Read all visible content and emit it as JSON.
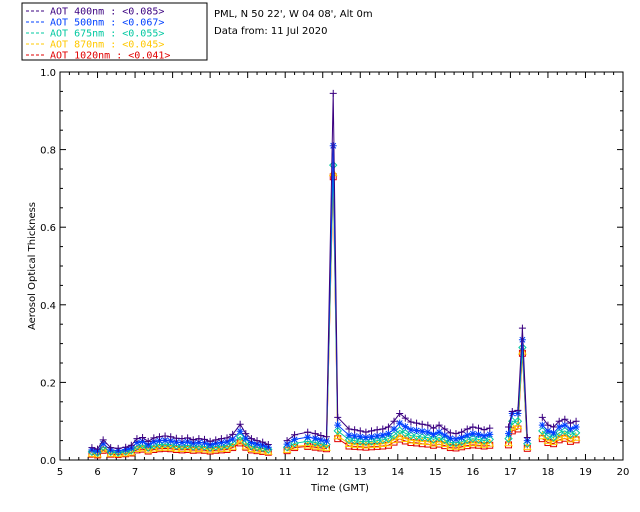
{
  "info": {
    "location": "PML, N 50 22', W 04 08', Alt 0m",
    "date": "Data from: 11 Jul 2020"
  },
  "chart_data": {
    "type": "line",
    "xlabel": "Time (GMT)",
    "ylabel": "Aerosol Optical Thickness",
    "xlim": [
      5,
      20
    ],
    "ylim": [
      0,
      1.0
    ],
    "x_ticks": [
      "5",
      "6",
      "7",
      "8",
      "9",
      "10",
      "11",
      "12",
      "13",
      "14",
      "15",
      "16",
      "17",
      "18",
      "19",
      "20"
    ],
    "y_ticks": [
      "0.0",
      "0.2",
      "0.4",
      "0.6",
      "0.8",
      "1.0"
    ],
    "legend_placement": "top-left outside",
    "x": [
      5.85,
      6.0,
      6.15,
      6.35,
      6.55,
      6.75,
      6.9,
      7.05,
      7.2,
      7.35,
      7.5,
      7.65,
      7.8,
      7.95,
      8.1,
      8.25,
      8.4,
      8.55,
      8.7,
      8.85,
      9.0,
      9.15,
      9.3,
      9.45,
      9.6,
      9.8,
      9.95,
      10.1,
      10.25,
      10.4,
      10.55,
      11.05,
      11.25,
      11.6,
      11.8,
      11.95,
      12.1,
      12.28,
      12.4,
      12.7,
      12.85,
      13.0,
      13.15,
      13.3,
      13.45,
      13.6,
      13.75,
      13.9,
      14.05,
      14.2,
      14.35,
      14.5,
      14.65,
      14.8,
      14.95,
      15.1,
      15.25,
      15.4,
      15.55,
      15.7,
      15.85,
      16.0,
      16.15,
      16.3,
      16.45,
      16.95,
      17.05,
      17.2,
      17.32,
      17.45,
      17.85,
      18.0,
      18.15,
      18.3,
      18.45,
      18.6,
      18.75
    ],
    "series": [
      {
        "name": "AOT  400nm",
        "mean_label": "<0.085>",
        "color": "#3a0080",
        "marker": "plus",
        "values": [
          0.032,
          0.028,
          0.052,
          0.032,
          0.03,
          0.033,
          0.038,
          0.055,
          0.058,
          0.048,
          0.057,
          0.06,
          0.062,
          0.06,
          0.056,
          0.055,
          0.057,
          0.052,
          0.055,
          0.053,
          0.048,
          0.052,
          0.055,
          0.057,
          0.066,
          0.092,
          0.068,
          0.055,
          0.05,
          0.046,
          0.04,
          0.05,
          0.065,
          0.072,
          0.068,
          0.063,
          0.06,
          0.945,
          0.11,
          0.08,
          0.078,
          0.075,
          0.072,
          0.075,
          0.078,
          0.08,
          0.085,
          0.1,
          0.12,
          0.108,
          0.098,
          0.095,
          0.092,
          0.09,
          0.082,
          0.09,
          0.08,
          0.07,
          0.068,
          0.072,
          0.08,
          0.085,
          0.082,
          0.078,
          0.082,
          0.085,
          0.125,
          0.128,
          0.34,
          0.058,
          0.11,
          0.09,
          0.085,
          0.1,
          0.105,
          0.095,
          0.1
        ]
      },
      {
        "name": "AOT  500nm",
        "mean_label": "<0.067>",
        "color": "#0040ff",
        "marker": "star",
        "values": [
          0.026,
          0.023,
          0.042,
          0.026,
          0.024,
          0.027,
          0.031,
          0.045,
          0.048,
          0.039,
          0.047,
          0.05,
          0.051,
          0.049,
          0.046,
          0.045,
          0.047,
          0.043,
          0.045,
          0.044,
          0.039,
          0.043,
          0.045,
          0.047,
          0.054,
          0.074,
          0.056,
          0.045,
          0.041,
          0.038,
          0.033,
          0.041,
          0.053,
          0.059,
          0.056,
          0.052,
          0.049,
          0.81,
          0.09,
          0.064,
          0.062,
          0.06,
          0.058,
          0.06,
          0.062,
          0.064,
          0.068,
          0.08,
          0.095,
          0.086,
          0.078,
          0.076,
          0.074,
          0.072,
          0.066,
          0.072,
          0.064,
          0.056,
          0.054,
          0.058,
          0.064,
          0.068,
          0.066,
          0.062,
          0.066,
          0.068,
          0.12,
          0.12,
          0.31,
          0.05,
          0.09,
          0.075,
          0.07,
          0.085,
          0.09,
          0.08,
          0.085
        ]
      },
      {
        "name": "AOT  675nm",
        "mean_label": "<0.055>",
        "color": "#00c8a0",
        "marker": "diamond",
        "values": [
          0.021,
          0.019,
          0.034,
          0.021,
          0.019,
          0.022,
          0.025,
          0.036,
          0.039,
          0.032,
          0.038,
          0.04,
          0.041,
          0.04,
          0.037,
          0.036,
          0.038,
          0.035,
          0.036,
          0.035,
          0.032,
          0.035,
          0.036,
          0.038,
          0.044,
          0.06,
          0.045,
          0.036,
          0.033,
          0.031,
          0.027,
          0.033,
          0.043,
          0.048,
          0.045,
          0.042,
          0.04,
          0.76,
          0.075,
          0.052,
          0.05,
          0.048,
          0.047,
          0.048,
          0.05,
          0.052,
          0.055,
          0.064,
          0.076,
          0.069,
          0.063,
          0.061,
          0.059,
          0.058,
          0.053,
          0.058,
          0.052,
          0.045,
          0.044,
          0.047,
          0.052,
          0.055,
          0.053,
          0.05,
          0.053,
          0.055,
          0.1,
          0.1,
          0.29,
          0.042,
          0.075,
          0.062,
          0.058,
          0.07,
          0.075,
          0.066,
          0.07
        ]
      },
      {
        "name": "AOT  870nm",
        "mean_label": "<0.045>",
        "color": "#ffc800",
        "marker": "triangle",
        "values": [
          0.017,
          0.015,
          0.028,
          0.017,
          0.016,
          0.018,
          0.02,
          0.029,
          0.031,
          0.026,
          0.03,
          0.032,
          0.033,
          0.032,
          0.03,
          0.029,
          0.03,
          0.028,
          0.029,
          0.028,
          0.026,
          0.028,
          0.029,
          0.03,
          0.035,
          0.048,
          0.036,
          0.029,
          0.027,
          0.025,
          0.022,
          0.027,
          0.035,
          0.038,
          0.036,
          0.034,
          0.032,
          0.74,
          0.062,
          0.042,
          0.04,
          0.039,
          0.038,
          0.039,
          0.04,
          0.042,
          0.044,
          0.052,
          0.061,
          0.055,
          0.051,
          0.049,
          0.048,
          0.047,
          0.043,
          0.047,
          0.042,
          0.036,
          0.035,
          0.038,
          0.042,
          0.044,
          0.043,
          0.04,
          0.043,
          0.044,
          0.085,
          0.088,
          0.28,
          0.034,
          0.062,
          0.05,
          0.047,
          0.058,
          0.062,
          0.054,
          0.058
        ]
      },
      {
        "name": "AOT 1020nm",
        "mean_label": "<0.041>",
        "color": "#e00000",
        "marker": "square",
        "values": [
          0.015,
          0.013,
          0.025,
          0.015,
          0.014,
          0.016,
          0.018,
          0.026,
          0.028,
          0.023,
          0.027,
          0.029,
          0.03,
          0.029,
          0.027,
          0.026,
          0.027,
          0.025,
          0.026,
          0.025,
          0.023,
          0.025,
          0.026,
          0.027,
          0.032,
          0.044,
          0.033,
          0.026,
          0.024,
          0.022,
          0.02,
          0.024,
          0.032,
          0.035,
          0.033,
          0.031,
          0.029,
          0.73,
          0.055,
          0.036,
          0.035,
          0.034,
          0.033,
          0.034,
          0.035,
          0.036,
          0.038,
          0.046,
          0.054,
          0.049,
          0.045,
          0.044,
          0.042,
          0.041,
          0.038,
          0.041,
          0.037,
          0.032,
          0.031,
          0.034,
          0.037,
          0.039,
          0.038,
          0.036,
          0.038,
          0.039,
          0.075,
          0.08,
          0.275,
          0.03,
          0.055,
          0.045,
          0.042,
          0.052,
          0.056,
          0.048,
          0.052
        ]
      }
    ]
  }
}
